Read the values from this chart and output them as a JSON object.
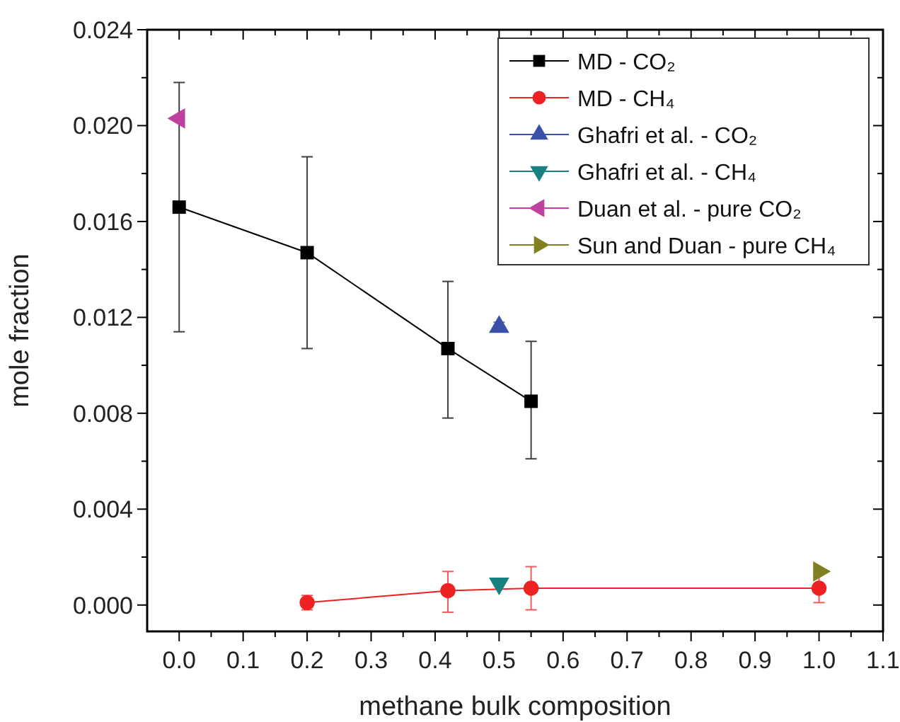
{
  "chart_data": {
    "type": "line",
    "xlabel": "methane bulk composition",
    "ylabel": "mole fraction",
    "xlim": [
      -0.05,
      1.1
    ],
    "xticks": [
      {
        "value": 0,
        "label": "0.0"
      },
      {
        "value": 0.1,
        "label": "0.1"
      },
      {
        "value": 0.2,
        "label": "0.2"
      },
      {
        "value": 0.3,
        "label": "0.3"
      },
      {
        "value": 0.4,
        "label": "0.4"
      },
      {
        "value": 0.5,
        "label": "0.5"
      },
      {
        "value": 0.6,
        "label": "0.6"
      },
      {
        "value": 0.7,
        "label": "0.7"
      },
      {
        "value": 0.8,
        "label": "0.8"
      },
      {
        "value": 0.9,
        "label": "0.9"
      },
      {
        "value": 1,
        "label": "1.0"
      },
      {
        "value": 1.1,
        "label": "1.1"
      }
    ],
    "ylim": [
      -0.0011,
      0.024
    ],
    "yticks": [
      {
        "value": 0,
        "label": "0.000"
      },
      {
        "value": 0.002,
        "label": null
      },
      {
        "value": 0.004,
        "label": "0.004"
      },
      {
        "value": 0.006,
        "label": null
      },
      {
        "value": 0.008,
        "label": "0.008"
      },
      {
        "value": 0.01,
        "label": null
      },
      {
        "value": 0.012,
        "label": "0.012"
      },
      {
        "value": 0.014,
        "label": null
      },
      {
        "value": 0.016,
        "label": "0.016"
      },
      {
        "value": 0.018,
        "label": null
      },
      {
        "value": 0.02,
        "label": "0.020"
      },
      {
        "value": 0.022,
        "label": null
      },
      {
        "value": 0.024,
        "label": "0.024"
      }
    ],
    "legend": "top right",
    "grid": false,
    "series": [
      {
        "name": "MD - CO₂",
        "marker": "square",
        "color": "#000000",
        "x": [
          0,
          0.2,
          0.42,
          0.55
        ],
        "values": [
          0.0166,
          0.0147,
          0.0107,
          0.0085
        ],
        "errors": [
          [
            0.0114,
            0.0218
          ],
          [
            0.0107,
            0.0187
          ],
          [
            0.0078,
            0.0135
          ],
          [
            0.0061,
            0.011
          ]
        ]
      },
      {
        "name": "MD - CH₄",
        "marker": "circle",
        "color": "#ee2222",
        "x": [
          0.2,
          0.42,
          0.55,
          1.0
        ],
        "values": [
          0.0001,
          0.0006,
          0.0007,
          0.0007
        ],
        "errors": [
          [
            -0.0002,
            0.0004
          ],
          [
            -0.0003,
            0.0014
          ],
          [
            -0.0002,
            0.0016
          ],
          [
            0.0001,
            0.0013
          ]
        ]
      },
      {
        "name": "Ghafri et al. - CO₂",
        "type": "scatter",
        "marker": "triangle",
        "color": "#3a4fa8",
        "x": [
          0.5
        ],
        "values": [
          0.0116
        ],
        "errors": [
          [
            0.0114,
            0.0118
          ]
        ]
      },
      {
        "name": "Ghafri et al. - CH₄",
        "type": "scatter",
        "marker": "triangle-down",
        "color": "#178080",
        "x": [
          0.5
        ],
        "values": [
          0.0009
        ]
      },
      {
        "name": "Duan et al. - pure CO₂",
        "type": "scatter",
        "marker": "triangle-left",
        "color": "#c040a0",
        "x": [
          0
        ],
        "values": [
          0.0203
        ]
      },
      {
        "name": "Sun and Duan - pure CH₄",
        "type": "scatter",
        "marker": "triangle-right",
        "color": "#808020",
        "x": [
          1.0
        ],
        "values": [
          0.0014
        ]
      }
    ]
  }
}
